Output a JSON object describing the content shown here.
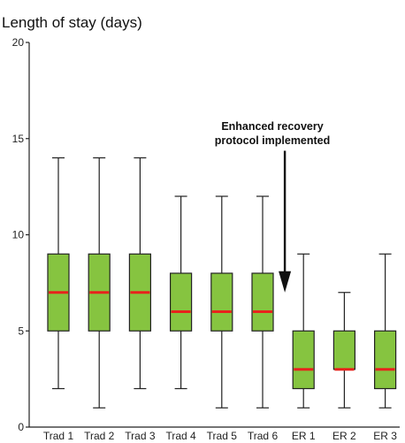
{
  "chart_data": {
    "type": "box",
    "title": "Length of stay (days)",
    "xlabel": "",
    "ylabel": "",
    "ylim": [
      0,
      20
    ],
    "yticks": [
      0,
      5,
      10,
      15,
      20
    ],
    "grid": false,
    "colors": {
      "box": "#86c440",
      "box_stroke": "#222222",
      "median": "#e8231c",
      "axis": "#222222"
    },
    "categories": [
      "Trad 1",
      "Trad 2",
      "Trad 3",
      "Trad 4",
      "Trad 5",
      "Trad 6",
      "ER 1",
      "ER 2",
      "ER 3"
    ],
    "boxes": [
      {
        "min": 2,
        "q1": 5,
        "median": 7,
        "q3": 9,
        "max": 14
      },
      {
        "min": 1,
        "q1": 5,
        "median": 7,
        "q3": 9,
        "max": 14
      },
      {
        "min": 2,
        "q1": 5,
        "median": 7,
        "q3": 9,
        "max": 14
      },
      {
        "min": 2,
        "q1": 5,
        "median": 6,
        "q3": 8,
        "max": 12
      },
      {
        "min": 1,
        "q1": 5,
        "median": 6,
        "q3": 8,
        "max": 12
      },
      {
        "min": 1,
        "q1": 5,
        "median": 6,
        "q3": 8,
        "max": 12
      },
      {
        "min": 1,
        "q1": 2,
        "median": 3,
        "q3": 5,
        "max": 9
      },
      {
        "min": 1,
        "q1": 3,
        "median": 3,
        "q3": 5,
        "max": 7
      },
      {
        "min": 1,
        "q1": 2,
        "median": 3,
        "q3": 5,
        "max": 9
      }
    ],
    "annotation": {
      "lines": [
        "Enhanced recovery",
        "protocol implemented"
      ],
      "arrow_x_between": [
        "Trad 6",
        "ER 1"
      ],
      "arrow_from_y": 14,
      "arrow_to_y": 7
    }
  }
}
